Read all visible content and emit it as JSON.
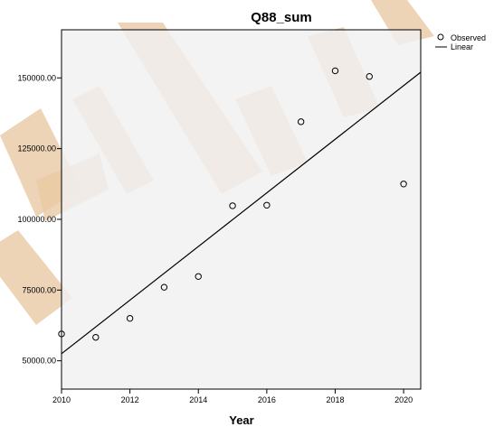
{
  "chart_data": {
    "type": "scatter",
    "title": "Q88_sum",
    "xlabel": "Year",
    "ylabel": "",
    "x_ticks": [
      "2010",
      "2012",
      "2014",
      "2016",
      "2018",
      "2020"
    ],
    "y_ticks": [
      "50000.00",
      "75000.00",
      "100000.00",
      "125000.00",
      "150000.00"
    ],
    "xlim": [
      2010,
      2020.5
    ],
    "ylim": [
      40000,
      167000
    ],
    "grid": false,
    "legend": {
      "position": "right",
      "entries": [
        {
          "label": "Observed",
          "marker": "circle"
        },
        {
          "label": "Linear",
          "marker": "line"
        }
      ]
    },
    "series": [
      {
        "name": "Observed",
        "x": [
          2010,
          2011,
          2012,
          2013,
          2014,
          2015,
          2016,
          2017,
          2018,
          2019,
          2020
        ],
        "y": [
          59500,
          58300,
          65000,
          76000,
          79800,
          104800,
          105000,
          134500,
          152500,
          150500,
          112500
        ]
      },
      {
        "name": "Linear",
        "x": [
          2010,
          2020.5
        ],
        "y": [
          52500,
          152000
        ]
      }
    ],
    "colors": {
      "plot_background": "#f0f0f0",
      "marker_edge": "#000000",
      "line": "#000000"
    }
  }
}
